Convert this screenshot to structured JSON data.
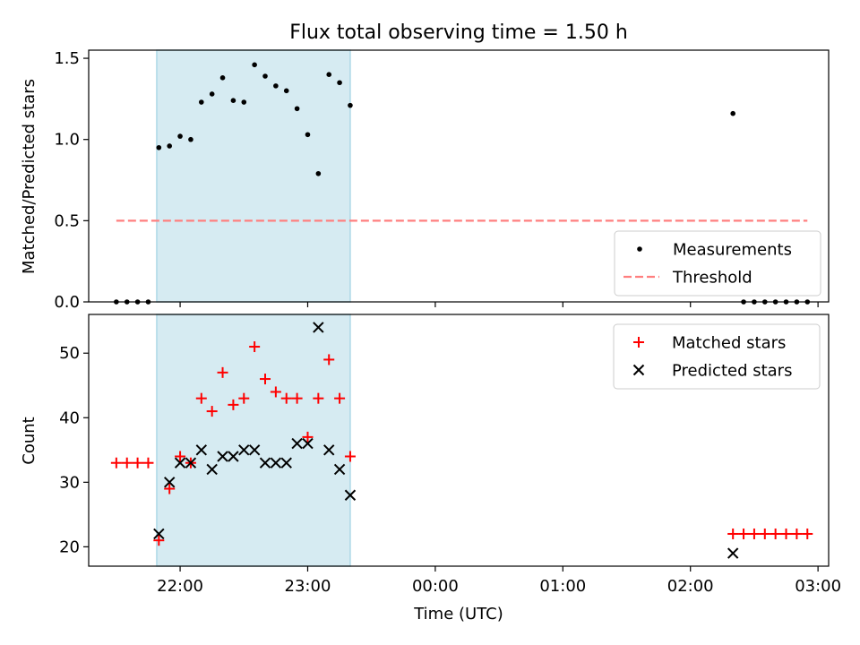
{
  "chart_data": [
    {
      "type": "scatter",
      "title": "Flux total observing time = 1.50 h",
      "xlabel": "",
      "ylabel": "Matched/Predicted stars",
      "ylim": [
        0,
        1.55
      ],
      "yticks": [
        "0.0",
        "0.5",
        "1.0",
        "1.5"
      ],
      "ytick_values": [
        0,
        0.5,
        1.0,
        1.5
      ],
      "shaded_interval": [
        "2000-01-01T21:49",
        "2000-01-01T23:20"
      ],
      "legend_position": "lower right",
      "series": [
        {
          "name": "Measurements",
          "marker": "dot",
          "color": "#000000",
          "points": [
            [
              "2000-01-01T21:30",
              0
            ],
            [
              "2000-01-01T21:35",
              0
            ],
            [
              "2000-01-01T21:40",
              0
            ],
            [
              "2000-01-01T21:45",
              0
            ],
            [
              "2000-01-01T21:50",
              0.95
            ],
            [
              "2000-01-01T21:55",
              0.96
            ],
            [
              "2000-01-01T22:00",
              1.02
            ],
            [
              "2000-01-01T22:05",
              1.0
            ],
            [
              "2000-01-01T22:10",
              1.23
            ],
            [
              "2000-01-01T22:15",
              1.28
            ],
            [
              "2000-01-01T22:20",
              1.38
            ],
            [
              "2000-01-01T22:25",
              1.24
            ],
            [
              "2000-01-01T22:30",
              1.23
            ],
            [
              "2000-01-01T22:35",
              1.46
            ],
            [
              "2000-01-01T22:40",
              1.39
            ],
            [
              "2000-01-01T22:45",
              1.33
            ],
            [
              "2000-01-01T22:50",
              1.3
            ],
            [
              "2000-01-01T22:55",
              1.19
            ],
            [
              "2000-01-01T23:00",
              1.03
            ],
            [
              "2000-01-01T23:05",
              0.79
            ],
            [
              "2000-01-01T23:10",
              1.4
            ],
            [
              "2000-01-01T23:15",
              1.35
            ],
            [
              "2000-01-01T23:20",
              1.21
            ],
            [
              "2000-01-02T02:20",
              1.16
            ],
            [
              "2000-01-02T02:25",
              0
            ],
            [
              "2000-01-02T02:30",
              0
            ],
            [
              "2000-01-02T02:35",
              0
            ],
            [
              "2000-01-02T02:40",
              0
            ],
            [
              "2000-01-02T02:45",
              0
            ],
            [
              "2000-01-02T02:50",
              0
            ],
            [
              "2000-01-02T02:55",
              0
            ]
          ]
        },
        {
          "name": "Threshold",
          "line_style": "dashed",
          "color": "#ff7f7f",
          "points": [
            [
              "2000-01-01T21:30",
              0.5
            ],
            [
              "2000-01-02T02:55",
              0.5
            ]
          ]
        }
      ]
    },
    {
      "type": "scatter",
      "title": "",
      "xlabel": "Time (UTC)",
      "ylabel": "Count",
      "ylim": [
        17,
        56
      ],
      "yticks": [
        "20",
        "30",
        "40",
        "50"
      ],
      "ytick_values": [
        20,
        30,
        40,
        50
      ],
      "xticks": [
        "22:00",
        "23:00",
        "00:00",
        "01:00",
        "02:00",
        "03:00"
      ],
      "xtick_values": [
        "2000-01-01T22:00",
        "2000-01-01T23:00",
        "2000-01-02T00:00",
        "2000-01-02T01:00",
        "2000-01-02T02:00",
        "2000-01-02T03:00"
      ],
      "xlim": [
        "2000-01-01T21:17",
        "2000-01-02T03:05"
      ],
      "shaded_interval": [
        "2000-01-01T21:49",
        "2000-01-01T23:20"
      ],
      "legend_position": "upper right",
      "series": [
        {
          "name": "Matched stars",
          "marker": "plus",
          "color": "#ff0000",
          "points": [
            [
              "2000-01-01T21:30",
              33
            ],
            [
              "2000-01-01T21:35",
              33
            ],
            [
              "2000-01-01T21:40",
              33
            ],
            [
              "2000-01-01T21:45",
              33
            ],
            [
              "2000-01-01T21:50",
              21
            ],
            [
              "2000-01-01T21:55",
              29
            ],
            [
              "2000-01-01T22:00",
              34
            ],
            [
              "2000-01-01T22:05",
              33
            ],
            [
              "2000-01-01T22:10",
              43
            ],
            [
              "2000-01-01T22:15",
              41
            ],
            [
              "2000-01-01T22:20",
              47
            ],
            [
              "2000-01-01T22:25",
              42
            ],
            [
              "2000-01-01T22:30",
              43
            ],
            [
              "2000-01-01T22:35",
              51
            ],
            [
              "2000-01-01T22:40",
              46
            ],
            [
              "2000-01-01T22:45",
              44
            ],
            [
              "2000-01-01T22:50",
              43
            ],
            [
              "2000-01-01T22:55",
              43
            ],
            [
              "2000-01-01T23:00",
              37
            ],
            [
              "2000-01-01T23:05",
              43
            ],
            [
              "2000-01-01T23:10",
              49
            ],
            [
              "2000-01-01T23:15",
              43
            ],
            [
              "2000-01-01T23:20",
              34
            ],
            [
              "2000-01-02T02:20",
              22
            ],
            [
              "2000-01-02T02:25",
              22
            ],
            [
              "2000-01-02T02:30",
              22
            ],
            [
              "2000-01-02T02:35",
              22
            ],
            [
              "2000-01-02T02:40",
              22
            ],
            [
              "2000-01-02T02:45",
              22
            ],
            [
              "2000-01-02T02:50",
              22
            ],
            [
              "2000-01-02T02:55",
              22
            ]
          ]
        },
        {
          "name": "Predicted stars",
          "marker": "x",
          "color": "#000000",
          "points": [
            [
              "2000-01-01T21:50",
              22
            ],
            [
              "2000-01-01T21:55",
              30
            ],
            [
              "2000-01-01T22:00",
              33
            ],
            [
              "2000-01-01T22:05",
              33
            ],
            [
              "2000-01-01T22:10",
              35
            ],
            [
              "2000-01-01T22:15",
              32
            ],
            [
              "2000-01-01T22:20",
              34
            ],
            [
              "2000-01-01T22:25",
              34
            ],
            [
              "2000-01-01T22:30",
              35
            ],
            [
              "2000-01-01T22:35",
              35
            ],
            [
              "2000-01-01T22:40",
              33
            ],
            [
              "2000-01-01T22:45",
              33
            ],
            [
              "2000-01-01T22:50",
              33
            ],
            [
              "2000-01-01T22:55",
              36
            ],
            [
              "2000-01-01T23:00",
              36
            ],
            [
              "2000-01-01T23:05",
              54
            ],
            [
              "2000-01-01T23:10",
              35
            ],
            [
              "2000-01-01T23:15",
              32
            ],
            [
              "2000-01-01T23:20",
              28
            ],
            [
              "2000-01-02T02:20",
              19
            ]
          ]
        }
      ]
    }
  ],
  "colors": {
    "shade": "#add8e6",
    "shade_opacity": 0.5,
    "axes": "#000000",
    "background": "#ffffff"
  }
}
